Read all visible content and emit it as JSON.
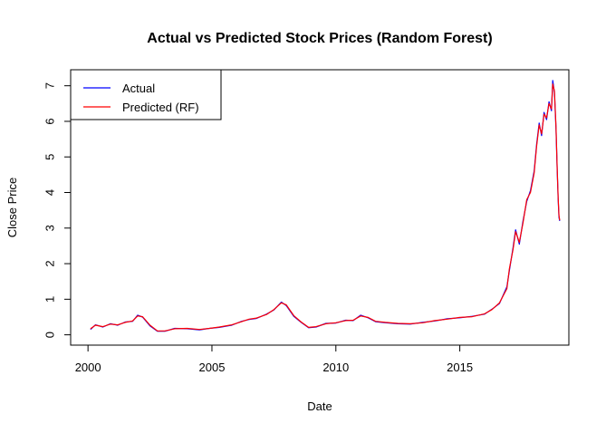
{
  "chart_data": {
    "type": "line",
    "title": "Actual vs Predicted Stock Prices (Random Forest)",
    "xlabel": "Date",
    "ylabel": "Close Price",
    "xlim": [
      1999.3,
      2019.4
    ],
    "ylim": [
      -0.29,
      7.45
    ],
    "x_ticks": [
      2000,
      2005,
      2010,
      2015
    ],
    "x_tick_labels": [
      "2000",
      "2005",
      "2010",
      "2015"
    ],
    "y_ticks": [
      0,
      1,
      2,
      3,
      4,
      5,
      6,
      7
    ],
    "y_tick_labels": [
      "0",
      "1",
      "2",
      "3",
      "4",
      "5",
      "6",
      "7"
    ],
    "grid": false,
    "legend_position": "top-left",
    "series": [
      {
        "name": "Actual",
        "color": "#0000ff",
        "points": [
          [
            2000.1,
            0.15
          ],
          [
            2000.3,
            0.28
          ],
          [
            2000.6,
            0.22
          ],
          [
            2000.9,
            0.31
          ],
          [
            2001.2,
            0.27
          ],
          [
            2001.5,
            0.36
          ],
          [
            2001.8,
            0.38
          ],
          [
            2002.0,
            0.55
          ],
          [
            2002.2,
            0.5
          ],
          [
            2002.5,
            0.25
          ],
          [
            2002.8,
            0.1
          ],
          [
            2003.1,
            0.1
          ],
          [
            2003.5,
            0.18
          ],
          [
            2004.0,
            0.17
          ],
          [
            2004.5,
            0.14
          ],
          [
            2004.9,
            0.18
          ],
          [
            2005.3,
            0.21
          ],
          [
            2005.8,
            0.27
          ],
          [
            2006.2,
            0.38
          ],
          [
            2006.5,
            0.43
          ],
          [
            2006.8,
            0.46
          ],
          [
            2007.2,
            0.58
          ],
          [
            2007.5,
            0.7
          ],
          [
            2007.8,
            0.92
          ],
          [
            2008.0,
            0.82
          ],
          [
            2008.3,
            0.52
          ],
          [
            2008.6,
            0.35
          ],
          [
            2008.9,
            0.2
          ],
          [
            2009.2,
            0.22
          ],
          [
            2009.6,
            0.32
          ],
          [
            2010.0,
            0.33
          ],
          [
            2010.4,
            0.41
          ],
          [
            2010.7,
            0.4
          ],
          [
            2011.0,
            0.55
          ],
          [
            2011.3,
            0.48
          ],
          [
            2011.6,
            0.37
          ],
          [
            2012.0,
            0.34
          ],
          [
            2012.5,
            0.31
          ],
          [
            2013.0,
            0.3
          ],
          [
            2013.5,
            0.35
          ],
          [
            2014.0,
            0.39
          ],
          [
            2014.5,
            0.45
          ],
          [
            2015.0,
            0.48
          ],
          [
            2015.5,
            0.52
          ],
          [
            2016.0,
            0.58
          ],
          [
            2016.3,
            0.72
          ],
          [
            2016.6,
            0.88
          ],
          [
            2016.9,
            1.35
          ],
          [
            2017.0,
            1.8
          ],
          [
            2017.15,
            2.45
          ],
          [
            2017.25,
            2.95
          ],
          [
            2017.4,
            2.55
          ],
          [
            2017.55,
            3.2
          ],
          [
            2017.7,
            3.75
          ],
          [
            2017.85,
            4.05
          ],
          [
            2018.0,
            4.6
          ],
          [
            2018.1,
            5.35
          ],
          [
            2018.2,
            5.95
          ],
          [
            2018.3,
            5.6
          ],
          [
            2018.4,
            6.25
          ],
          [
            2018.5,
            6.05
          ],
          [
            2018.6,
            6.55
          ],
          [
            2018.7,
            6.3
          ],
          [
            2018.75,
            7.15
          ],
          [
            2018.82,
            6.8
          ],
          [
            2018.88,
            5.8
          ],
          [
            2018.93,
            4.65
          ],
          [
            2018.97,
            3.8
          ],
          [
            2019.0,
            3.3
          ],
          [
            2019.03,
            3.2
          ]
        ]
      },
      {
        "name": "Predicted (RF)",
        "color": "#ff0000",
        "points": [
          [
            2000.1,
            0.17
          ],
          [
            2000.3,
            0.27
          ],
          [
            2000.6,
            0.23
          ],
          [
            2000.9,
            0.3
          ],
          [
            2001.2,
            0.28
          ],
          [
            2001.5,
            0.35
          ],
          [
            2001.8,
            0.39
          ],
          [
            2002.0,
            0.53
          ],
          [
            2002.2,
            0.51
          ],
          [
            2002.5,
            0.27
          ],
          [
            2002.8,
            0.11
          ],
          [
            2003.1,
            0.11
          ],
          [
            2003.5,
            0.17
          ],
          [
            2004.0,
            0.18
          ],
          [
            2004.5,
            0.15
          ],
          [
            2004.9,
            0.18
          ],
          [
            2005.3,
            0.22
          ],
          [
            2005.8,
            0.28
          ],
          [
            2006.2,
            0.37
          ],
          [
            2006.5,
            0.44
          ],
          [
            2006.8,
            0.47
          ],
          [
            2007.2,
            0.57
          ],
          [
            2007.5,
            0.71
          ],
          [
            2007.8,
            0.9
          ],
          [
            2008.0,
            0.84
          ],
          [
            2008.3,
            0.54
          ],
          [
            2008.6,
            0.36
          ],
          [
            2008.9,
            0.21
          ],
          [
            2009.2,
            0.23
          ],
          [
            2009.6,
            0.31
          ],
          [
            2010.0,
            0.34
          ],
          [
            2010.4,
            0.4
          ],
          [
            2010.7,
            0.41
          ],
          [
            2011.0,
            0.53
          ],
          [
            2011.3,
            0.49
          ],
          [
            2011.6,
            0.38
          ],
          [
            2012.0,
            0.35
          ],
          [
            2012.5,
            0.32
          ],
          [
            2013.0,
            0.31
          ],
          [
            2013.5,
            0.34
          ],
          [
            2014.0,
            0.4
          ],
          [
            2014.5,
            0.44
          ],
          [
            2015.0,
            0.49
          ],
          [
            2015.5,
            0.51
          ],
          [
            2016.0,
            0.59
          ],
          [
            2016.3,
            0.71
          ],
          [
            2016.6,
            0.9
          ],
          [
            2016.9,
            1.3
          ],
          [
            2017.0,
            1.85
          ],
          [
            2017.15,
            2.4
          ],
          [
            2017.25,
            2.9
          ],
          [
            2017.4,
            2.6
          ],
          [
            2017.55,
            3.15
          ],
          [
            2017.7,
            3.8
          ],
          [
            2017.85,
            4.0
          ],
          [
            2018.0,
            4.55
          ],
          [
            2018.1,
            5.3
          ],
          [
            2018.2,
            5.9
          ],
          [
            2018.3,
            5.65
          ],
          [
            2018.4,
            6.2
          ],
          [
            2018.5,
            6.1
          ],
          [
            2018.6,
            6.5
          ],
          [
            2018.7,
            6.35
          ],
          [
            2018.75,
            7.05
          ],
          [
            2018.82,
            6.85
          ],
          [
            2018.88,
            5.85
          ],
          [
            2018.93,
            4.7
          ],
          [
            2018.97,
            3.85
          ],
          [
            2019.0,
            3.35
          ],
          [
            2019.03,
            3.22
          ]
        ]
      }
    ]
  }
}
